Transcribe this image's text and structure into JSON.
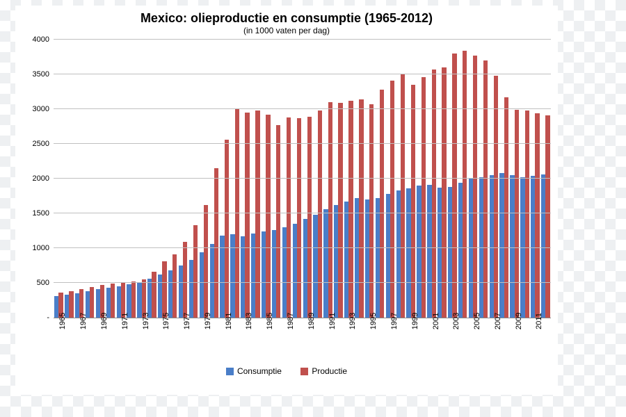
{
  "chart": {
    "type": "bar",
    "title": "Mexico: olieproductie en consumptie (1965-2012)",
    "subtitle": "(in 1000 vaten per dag)",
    "title_fontsize": 18,
    "subtitle_fontsize": 12,
    "background_color": "#ffffff",
    "grid_color": "#c0c0c0",
    "y": {
      "min": 0,
      "max": 4000,
      "step": 500,
      "ticks": [
        "-",
        "500",
        "1000",
        "1500",
        "2000",
        "2500",
        "3000",
        "3500",
        "4000"
      ]
    },
    "years": [
      1965,
      1966,
      1967,
      1968,
      1969,
      1970,
      1971,
      1972,
      1973,
      1974,
      1975,
      1976,
      1977,
      1978,
      1979,
      1980,
      1981,
      1982,
      1983,
      1984,
      1985,
      1986,
      1987,
      1988,
      1989,
      1990,
      1991,
      1992,
      1993,
      1994,
      1995,
      1996,
      1997,
      1998,
      1999,
      2000,
      2001,
      2002,
      2003,
      2004,
      2005,
      2006,
      2007,
      2008,
      2009,
      2010,
      2011,
      2012
    ],
    "x_tick_step": 2,
    "series": [
      {
        "name": "Consumptie",
        "color": "#4a7ec8",
        "values": [
          310,
          330,
          350,
          380,
          410,
          430,
          450,
          480,
          510,
          560,
          620,
          680,
          750,
          830,
          940,
          1060,
          1180,
          1200,
          1170,
          1210,
          1240,
          1260,
          1300,
          1350,
          1420,
          1480,
          1560,
          1620,
          1670,
          1720,
          1700,
          1720,
          1780,
          1830,
          1860,
          1900,
          1910,
          1870,
          1880,
          1940,
          2010,
          2020,
          2050,
          2080,
          2050,
          2020,
          2040,
          2060
        ]
      },
      {
        "name": "Productie",
        "color": "#c0504d",
        "values": [
          360,
          380,
          410,
          440,
          470,
          490,
          500,
          520,
          550,
          660,
          810,
          910,
          1090,
          1330,
          1620,
          2150,
          2560,
          3010,
          2950,
          2980,
          2920,
          2770,
          2880,
          2870,
          2890,
          2980,
          3100,
          3090,
          3120,
          3140,
          3070,
          3280,
          3410,
          3500,
          3350,
          3460,
          3570,
          3600,
          3800,
          3840,
          3770,
          3700,
          3480,
          3170,
          2990,
          2980,
          2940,
          2910
        ]
      }
    ],
    "legend": {
      "items": [
        "Consumptie",
        "Productie"
      ]
    }
  }
}
